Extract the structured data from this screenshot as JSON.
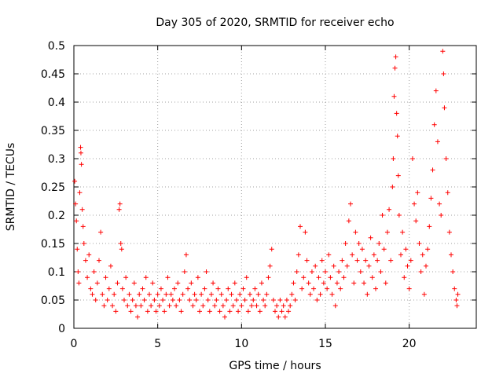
{
  "chart_data": {
    "type": "scatter",
    "title": "Day 305 of 2020, SRMTID for receiver echo",
    "xlabel": "GPS time / hours",
    "ylabel": "SRMTID / TECUs",
    "xlim": [
      0,
      24
    ],
    "ylim": [
      0,
      0.5
    ],
    "xticks": [
      0,
      5,
      10,
      15,
      20
    ],
    "xtick_labels": [
      "0",
      "5",
      "10",
      "15",
      "20"
    ],
    "yticks": [
      0,
      0.05,
      0.1,
      0.15,
      0.2,
      0.25,
      0.3,
      0.35,
      0.4,
      0.45,
      0.5
    ],
    "ytick_labels": [
      "0",
      "0.05",
      "0.1",
      "0.15",
      "0.2",
      "0.25",
      "0.3",
      "0.35",
      "0.4",
      "0.45",
      "0.5"
    ],
    "grid": true,
    "marker": "+",
    "color": "#ff0000",
    "series": [
      {
        "name": "SRMTID",
        "points": [
          [
            0.05,
            0.26
          ],
          [
            0.1,
            0.22
          ],
          [
            0.15,
            0.19
          ],
          [
            0.2,
            0.14
          ],
          [
            0.25,
            0.1
          ],
          [
            0.3,
            0.08
          ],
          [
            0.35,
            0.24
          ],
          [
            0.4,
            0.32
          ],
          [
            0.42,
            0.31
          ],
          [
            0.45,
            0.29
          ],
          [
            0.5,
            0.21
          ],
          [
            0.55,
            0.18
          ],
          [
            0.6,
            0.15
          ],
          [
            0.7,
            0.12
          ],
          [
            0.8,
            0.09
          ],
          [
            0.9,
            0.13
          ],
          [
            1.0,
            0.07
          ],
          [
            1.1,
            0.06
          ],
          [
            1.2,
            0.1
          ],
          [
            1.3,
            0.05
          ],
          [
            1.4,
            0.08
          ],
          [
            1.5,
            0.12
          ],
          [
            1.6,
            0.17
          ],
          [
            1.7,
            0.06
          ],
          [
            1.8,
            0.04
          ],
          [
            1.9,
            0.09
          ],
          [
            2.0,
            0.05
          ],
          [
            2.1,
            0.07
          ],
          [
            2.2,
            0.11
          ],
          [
            2.3,
            0.04
          ],
          [
            2.4,
            0.06
          ],
          [
            2.5,
            0.03
          ],
          [
            2.6,
            0.08
          ],
          [
            2.7,
            0.21
          ],
          [
            2.75,
            0.22
          ],
          [
            2.8,
            0.15
          ],
          [
            2.85,
            0.14
          ],
          [
            2.9,
            0.07
          ],
          [
            3.0,
            0.05
          ],
          [
            3.1,
            0.09
          ],
          [
            3.2,
            0.04
          ],
          [
            3.3,
            0.06
          ],
          [
            3.4,
            0.03
          ],
          [
            3.5,
            0.05
          ],
          [
            3.6,
            0.08
          ],
          [
            3.7,
            0.04
          ],
          [
            3.8,
            0.02
          ],
          [
            3.9,
            0.06
          ],
          [
            4.0,
            0.04
          ],
          [
            4.1,
            0.07
          ],
          [
            4.2,
            0.05
          ],
          [
            4.3,
            0.09
          ],
          [
            4.4,
            0.03
          ],
          [
            4.5,
            0.06
          ],
          [
            4.6,
            0.04
          ],
          [
            4.7,
            0.08
          ],
          [
            4.8,
            0.05
          ],
          [
            4.9,
            0.03
          ],
          [
            5.0,
            0.06
          ],
          [
            5.1,
            0.04
          ],
          [
            5.2,
            0.07
          ],
          [
            5.3,
            0.05
          ],
          [
            5.4,
            0.03
          ],
          [
            5.5,
            0.06
          ],
          [
            5.6,
            0.09
          ],
          [
            5.7,
            0.04
          ],
          [
            5.8,
            0.06
          ],
          [
            5.9,
            0.05
          ],
          [
            6.0,
            0.07
          ],
          [
            6.1,
            0.04
          ],
          [
            6.2,
            0.08
          ],
          [
            6.3,
            0.05
          ],
          [
            6.4,
            0.03
          ],
          [
            6.5,
            0.06
          ],
          [
            6.6,
            0.1
          ],
          [
            6.7,
            0.13
          ],
          [
            6.8,
            0.07
          ],
          [
            6.9,
            0.05
          ],
          [
            7.0,
            0.08
          ],
          [
            7.1,
            0.04
          ],
          [
            7.2,
            0.06
          ],
          [
            7.3,
            0.05
          ],
          [
            7.4,
            0.09
          ],
          [
            7.5,
            0.03
          ],
          [
            7.6,
            0.06
          ],
          [
            7.7,
            0.04
          ],
          [
            7.8,
            0.07
          ],
          [
            7.9,
            0.1
          ],
          [
            8.0,
            0.05
          ],
          [
            8.1,
            0.03
          ],
          [
            8.2,
            0.06
          ],
          [
            8.3,
            0.08
          ],
          [
            8.4,
            0.04
          ],
          [
            8.5,
            0.05
          ],
          [
            8.6,
            0.07
          ],
          [
            8.7,
            0.03
          ],
          [
            8.8,
            0.06
          ],
          [
            8.9,
            0.04
          ],
          [
            9.0,
            0.02
          ],
          [
            9.1,
            0.05
          ],
          [
            9.2,
            0.07
          ],
          [
            9.3,
            0.03
          ],
          [
            9.4,
            0.06
          ],
          [
            9.5,
            0.04
          ],
          [
            9.6,
            0.08
          ],
          [
            9.7,
            0.05
          ],
          [
            9.8,
            0.03
          ],
          [
            9.9,
            0.06
          ],
          [
            10.0,
            0.04
          ],
          [
            10.1,
            0.07
          ],
          [
            10.2,
            0.05
          ],
          [
            10.3,
            0.09
          ],
          [
            10.4,
            0.03
          ],
          [
            10.5,
            0.06
          ],
          [
            10.6,
            0.04
          ],
          [
            10.7,
            0.05
          ],
          [
            10.8,
            0.07
          ],
          [
            10.9,
            0.04
          ],
          [
            11.0,
            0.06
          ],
          [
            11.1,
            0.03
          ],
          [
            11.2,
            0.08
          ],
          [
            11.3,
            0.05
          ],
          [
            11.4,
            0.04
          ],
          [
            11.5,
            0.06
          ],
          [
            11.6,
            0.09
          ],
          [
            11.7,
            0.11
          ],
          [
            11.8,
            0.14
          ],
          [
            11.9,
            0.05
          ],
          [
            12.0,
            0.03
          ],
          [
            12.1,
            0.04
          ],
          [
            12.2,
            0.02
          ],
          [
            12.3,
            0.05
          ],
          [
            12.4,
            0.03
          ],
          [
            12.5,
            0.04
          ],
          [
            12.6,
            0.02
          ],
          [
            12.7,
            0.05
          ],
          [
            12.8,
            0.03
          ],
          [
            12.9,
            0.04
          ],
          [
            13.0,
            0.06
          ],
          [
            13.1,
            0.08
          ],
          [
            13.2,
            0.05
          ],
          [
            13.3,
            0.1
          ],
          [
            13.4,
            0.13
          ],
          [
            13.5,
            0.18
          ],
          [
            13.6,
            0.07
          ],
          [
            13.7,
            0.09
          ],
          [
            13.8,
            0.17
          ],
          [
            13.9,
            0.12
          ],
          [
            14.0,
            0.08
          ],
          [
            14.1,
            0.06
          ],
          [
            14.2,
            0.1
          ],
          [
            14.3,
            0.07
          ],
          [
            14.4,
            0.11
          ],
          [
            14.5,
            0.05
          ],
          [
            14.6,
            0.09
          ],
          [
            14.7,
            0.06
          ],
          [
            14.8,
            0.12
          ],
          [
            14.9,
            0.08
          ],
          [
            15.0,
            0.1
          ],
          [
            15.1,
            0.07
          ],
          [
            15.2,
            0.13
          ],
          [
            15.3,
            0.09
          ],
          [
            15.4,
            0.06
          ],
          [
            15.5,
            0.11
          ],
          [
            15.6,
            0.04
          ],
          [
            15.7,
            0.08
          ],
          [
            15.8,
            0.1
          ],
          [
            15.9,
            0.07
          ],
          [
            16.0,
            0.12
          ],
          [
            16.1,
            0.09
          ],
          [
            16.2,
            0.15
          ],
          [
            16.3,
            0.11
          ],
          [
            16.4,
            0.19
          ],
          [
            16.5,
            0.22
          ],
          [
            16.6,
            0.13
          ],
          [
            16.7,
            0.08
          ],
          [
            16.8,
            0.17
          ],
          [
            16.9,
            0.12
          ],
          [
            17.0,
            0.15
          ],
          [
            17.1,
            0.1
          ],
          [
            17.2,
            0.14
          ],
          [
            17.3,
            0.08
          ],
          [
            17.4,
            0.12
          ],
          [
            17.5,
            0.06
          ],
          [
            17.6,
            0.11
          ],
          [
            17.7,
            0.16
          ],
          [
            17.8,
            0.09
          ],
          [
            17.9,
            0.13
          ],
          [
            18.0,
            0.07
          ],
          [
            18.1,
            0.12
          ],
          [
            18.2,
            0.15
          ],
          [
            18.3,
            0.1
          ],
          [
            18.4,
            0.2
          ],
          [
            18.5,
            0.14
          ],
          [
            18.6,
            0.08
          ],
          [
            18.7,
            0.17
          ],
          [
            18.8,
            0.21
          ],
          [
            18.9,
            0.12
          ],
          [
            19.0,
            0.25
          ],
          [
            19.05,
            0.3
          ],
          [
            19.1,
            0.41
          ],
          [
            19.15,
            0.46
          ],
          [
            19.2,
            0.48
          ],
          [
            19.25,
            0.38
          ],
          [
            19.3,
            0.34
          ],
          [
            19.35,
            0.27
          ],
          [
            19.4,
            0.2
          ],
          [
            19.5,
            0.13
          ],
          [
            19.6,
            0.17
          ],
          [
            19.7,
            0.09
          ],
          [
            19.8,
            0.14
          ],
          [
            19.9,
            0.11
          ],
          [
            20.0,
            0.07
          ],
          [
            20.1,
            0.12
          ],
          [
            20.2,
            0.3
          ],
          [
            20.3,
            0.22
          ],
          [
            20.4,
            0.19
          ],
          [
            20.5,
            0.24
          ],
          [
            20.6,
            0.15
          ],
          [
            20.7,
            0.1
          ],
          [
            20.8,
            0.13
          ],
          [
            20.9,
            0.06
          ],
          [
            21.0,
            0.11
          ],
          [
            21.1,
            0.14
          ],
          [
            21.2,
            0.18
          ],
          [
            21.3,
            0.23
          ],
          [
            21.4,
            0.28
          ],
          [
            21.5,
            0.36
          ],
          [
            21.6,
            0.42
          ],
          [
            21.7,
            0.33
          ],
          [
            21.8,
            0.22
          ],
          [
            21.9,
            0.2
          ],
          [
            22.0,
            0.49
          ],
          [
            22.05,
            0.45
          ],
          [
            22.1,
            0.39
          ],
          [
            22.2,
            0.3
          ],
          [
            22.3,
            0.24
          ],
          [
            22.4,
            0.17
          ],
          [
            22.5,
            0.13
          ],
          [
            22.6,
            0.1
          ],
          [
            22.7,
            0.07
          ],
          [
            22.8,
            0.05
          ],
          [
            22.85,
            0.04
          ],
          [
            22.9,
            0.06
          ]
        ]
      }
    ]
  }
}
